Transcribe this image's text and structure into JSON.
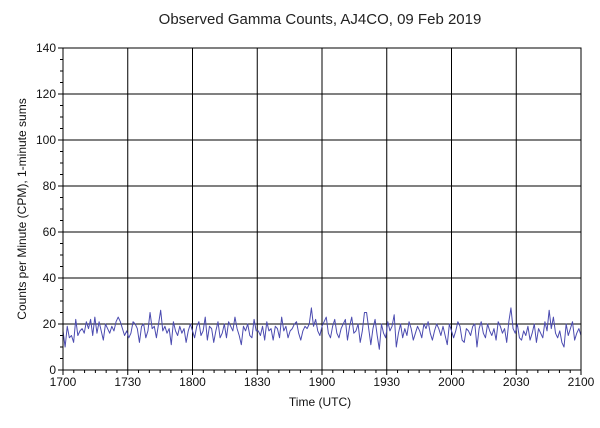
{
  "chart_data": {
    "type": "line",
    "title": "Observed Gamma Counts, AJ4CO, 09 Feb 2019",
    "xlabel": "Time (UTC)",
    "ylabel": "Counts per Minute (CPM), 1-minute sums",
    "xlim": [
      0,
      240
    ],
    "ylim": [
      0,
      140
    ],
    "x_ticks": [
      "1700",
      "1730",
      "1800",
      "1830",
      "1900",
      "1930",
      "2000",
      "2030",
      "2100"
    ],
    "y_ticks": [
      "0",
      "20",
      "40",
      "60",
      "80",
      "100",
      "120",
      "140"
    ],
    "grid": true,
    "line_color": "#4b4bb0",
    "series": [
      {
        "values": [
          17,
          10,
          19,
          14,
          15,
          12,
          22,
          15,
          17,
          18,
          16,
          21,
          18,
          22,
          15,
          23,
          16,
          21,
          17,
          13,
          20,
          18,
          16,
          19,
          17,
          21,
          23,
          21,
          18,
          15,
          17,
          14,
          16,
          21,
          20,
          18,
          12,
          19,
          20,
          14,
          17,
          25,
          18,
          19,
          14,
          20,
          26,
          17,
          19,
          16,
          18,
          11,
          21,
          17,
          15,
          19,
          16,
          18,
          12,
          17,
          20,
          17,
          14,
          19,
          21,
          15,
          17,
          23,
          13,
          19,
          18,
          12,
          17,
          21,
          14,
          16,
          20,
          14,
          21,
          19,
          17,
          23,
          18,
          15,
          11,
          19,
          17,
          20,
          15,
          14,
          22,
          17,
          17,
          15,
          19,
          13,
          21,
          17,
          18,
          13,
          19,
          18,
          14,
          23,
          17,
          19,
          14,
          17,
          18,
          20,
          21,
          16,
          13,
          17,
          19,
          18,
          20,
          27,
          19,
          22,
          17,
          15,
          19,
          21,
          23,
          16,
          14,
          19,
          22,
          16,
          14,
          18,
          20,
          22,
          13,
          19,
          23,
          16,
          17,
          20,
          12,
          17,
          25,
          25,
          18,
          11,
          18,
          22,
          15,
          9,
          20,
          16,
          14,
          21,
          17,
          19,
          24,
          10,
          16,
          20,
          14,
          18,
          15,
          21,
          18,
          13,
          16,
          19,
          17,
          14,
          20,
          18,
          21,
          16,
          13,
          17,
          20,
          18,
          15,
          19,
          15,
          11,
          20,
          17,
          14,
          17,
          21,
          19,
          13,
          12,
          18,
          17,
          15,
          19,
          20,
          10,
          18,
          21,
          16,
          14,
          20,
          17,
          15,
          18,
          13,
          21,
          19,
          16,
          18,
          12,
          21,
          27,
          18,
          16,
          20,
          14,
          13,
          17,
          15,
          19,
          13,
          16,
          20,
          12,
          18,
          16,
          14,
          21,
          17,
          26,
          18,
          23,
          16,
          14,
          17,
          12,
          10,
          20,
          15,
          18,
          21,
          13,
          16,
          18,
          15
        ]
      }
    ]
  }
}
